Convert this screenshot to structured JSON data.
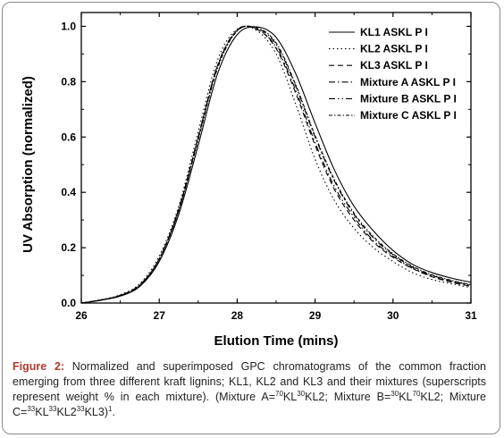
{
  "chart_data": {
    "type": "line",
    "xlabel": "Elution Time (mins)",
    "ylabel": "UV Absorption (normalized)",
    "xlim": [
      26,
      31
    ],
    "ylim": [
      0,
      1.05
    ],
    "x_ticks": [
      26,
      27,
      28,
      29,
      30,
      31
    ],
    "y_ticks": [
      0.0,
      0.2,
      0.4,
      0.6,
      0.8,
      1.0
    ],
    "x_tick_labels": [
      "26",
      "27",
      "28",
      "29",
      "30",
      "31"
    ],
    "y_tick_labels": [
      "0.0",
      "0.2",
      "0.4",
      "0.6",
      "0.8",
      "1.0"
    ],
    "grid": false,
    "legend_position": "top-right",
    "x": [
      26.0,
      26.25,
      26.5,
      26.75,
      27.0,
      27.25,
      27.5,
      27.75,
      28.0,
      28.25,
      28.5,
      28.75,
      29.0,
      29.25,
      29.5,
      29.75,
      30.0,
      30.25,
      30.5,
      30.75,
      31.0
    ],
    "series": [
      {
        "name": "KL1  ASKL P I",
        "dash": "",
        "values": [
          0.0,
          0.01,
          0.025,
          0.06,
          0.15,
          0.32,
          0.57,
          0.83,
          0.97,
          0.998,
          0.96,
          0.83,
          0.65,
          0.48,
          0.35,
          0.26,
          0.19,
          0.14,
          0.11,
          0.09,
          0.075
        ]
      },
      {
        "name": "KL2  ASKL P I",
        "dash": "1.5,3",
        "values": [
          0.0,
          0.012,
          0.03,
          0.07,
          0.17,
          0.35,
          0.62,
          0.88,
          0.99,
          0.985,
          0.9,
          0.72,
          0.52,
          0.37,
          0.27,
          0.2,
          0.15,
          0.11,
          0.085,
          0.07,
          0.055
        ]
      },
      {
        "name": "KL3  ASKL P I",
        "dash": "6,4",
        "values": [
          0.0,
          0.011,
          0.028,
          0.066,
          0.16,
          0.34,
          0.6,
          0.86,
          0.985,
          0.99,
          0.92,
          0.76,
          0.57,
          0.41,
          0.3,
          0.22,
          0.165,
          0.125,
          0.095,
          0.075,
          0.06
        ]
      },
      {
        "name": "Mixture A  ASKL P I",
        "dash": "7,3,1.5,3",
        "values": [
          0.0,
          0.011,
          0.027,
          0.064,
          0.16,
          0.335,
          0.595,
          0.855,
          0.985,
          0.993,
          0.935,
          0.785,
          0.6,
          0.44,
          0.32,
          0.235,
          0.175,
          0.13,
          0.1,
          0.08,
          0.065
        ]
      },
      {
        "name": "Mixture B  ASKL P I",
        "dash": "7,3,1.5,3,1.5,3",
        "values": [
          0.0,
          0.011,
          0.028,
          0.065,
          0.16,
          0.34,
          0.6,
          0.86,
          0.987,
          0.99,
          0.925,
          0.77,
          0.58,
          0.42,
          0.31,
          0.225,
          0.17,
          0.125,
          0.097,
          0.077,
          0.062
        ]
      },
      {
        "name": "Mixture C  ASKL P I",
        "dash": "4,2,1.5,2",
        "values": [
          0.0,
          0.011,
          0.027,
          0.063,
          0.158,
          0.333,
          0.59,
          0.85,
          0.983,
          0.995,
          0.94,
          0.79,
          0.605,
          0.445,
          0.325,
          0.24,
          0.178,
          0.133,
          0.102,
          0.082,
          0.066
        ]
      }
    ]
  },
  "caption": {
    "label": "Figure 2:",
    "t1": " Normalized and superimposed GPC chromatograms of  the common fraction emerging from three different kraft lignins;   KL1, KL2 and KL3 and their mixtures (superscripts represent weight % in each mixture). (Mixture A=",
    "s1": "70",
    "t2": "KL",
    "s2": "30",
    "t3": "KL2; Mixture B=",
    "s3": "30",
    "t4": "KL",
    "s4": "70",
    "t5": "KL2; Mixture C=",
    "s5": "33",
    "t6": "KL",
    "s6": "33",
    "t7": "KL2",
    "s7": "33",
    "t8": "KL3)",
    "s8": "1",
    "t9": "."
  }
}
